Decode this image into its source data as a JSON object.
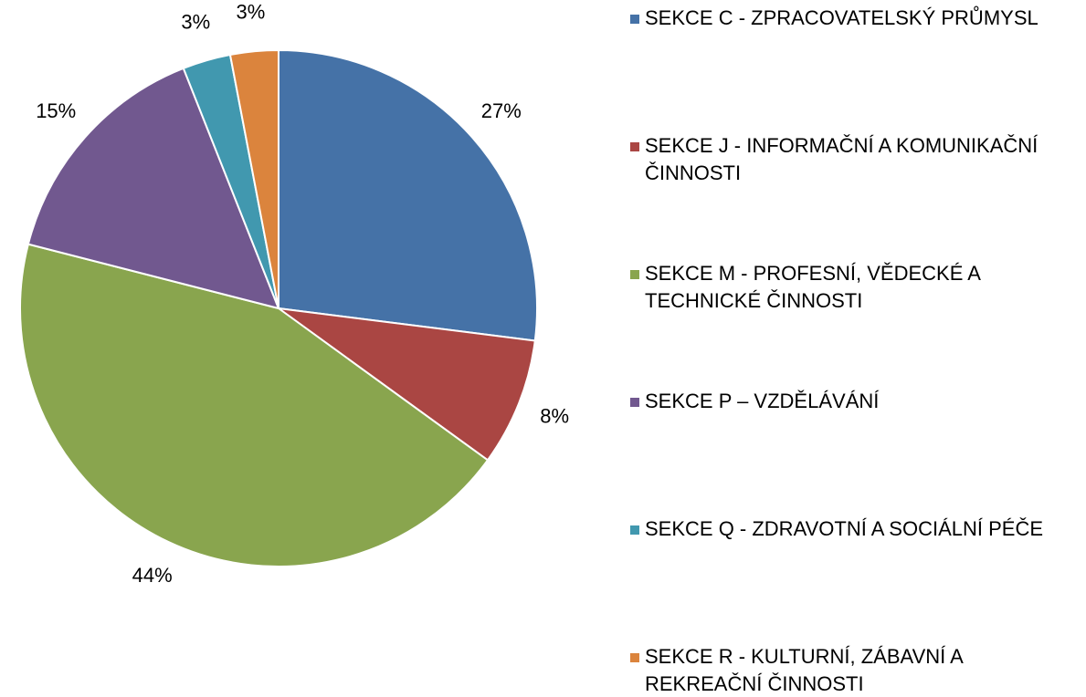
{
  "chart_data": {
    "type": "pie",
    "categories": [
      "SEKCE C - ZPRACOVATELSKÝ PRŮMYSL",
      "SEKCE J - INFORMAČNÍ A KOMUNIKAČNÍ ČINNOSTI",
      "SEKCE M - PROFESNÍ, VĚDECKÉ A TECHNICKÉ ČINNOSTI",
      "SEKCE P – VZDĚLÁVÁNÍ",
      "SEKCE Q - ZDRAVOTNÍ A SOCIÁLNÍ PÉČE",
      "SEKCE R - KULTURNÍ, ZÁBAVNÍ A REKREAČNÍ ČINNOSTI"
    ],
    "values": [
      27,
      8,
      44,
      15,
      3,
      3
    ],
    "value_labels": [
      "27%",
      "8%",
      "44%",
      "15%",
      "3%",
      "3%"
    ],
    "colors": [
      "#4572a7",
      "#aa4643",
      "#89a54e",
      "#71588f",
      "#4198af",
      "#db843d"
    ],
    "legend": "right"
  }
}
